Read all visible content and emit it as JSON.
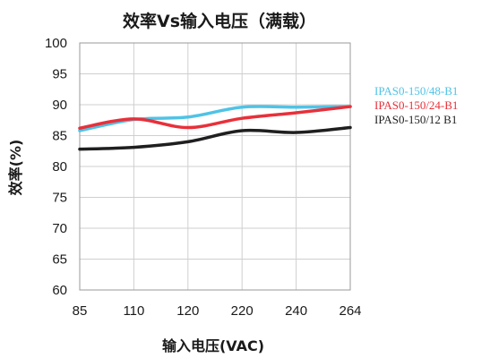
{
  "chart_data": {
    "type": "line",
    "title": "效率Vs输入电压（满载）",
    "xlabel": "输入电压(VAC)",
    "ylabel": "效率(%)",
    "categories": [
      "85",
      "110",
      "120",
      "220",
      "240",
      "264"
    ],
    "ylim": [
      60,
      100
    ],
    "yticks": [
      "60",
      "65",
      "70",
      "75",
      "80",
      "85",
      "90",
      "95",
      "100"
    ],
    "grid": true,
    "legend_position": "right",
    "series": [
      {
        "name": "IPAS0-150/48-B1",
        "color": "#4fc3e6",
        "values": [
          85.8,
          87.6,
          88.0,
          89.6,
          89.6,
          89.7
        ]
      },
      {
        "name": "IPAS0-150/24-B1",
        "color": "#e8303a",
        "values": [
          86.2,
          87.7,
          86.3,
          87.8,
          88.7,
          89.7
        ]
      },
      {
        "name": "IPAS0-150/12 B1",
        "color": "#1f1f1f",
        "values": [
          82.8,
          83.1,
          84.0,
          85.8,
          85.5,
          86.3
        ]
      }
    ]
  }
}
